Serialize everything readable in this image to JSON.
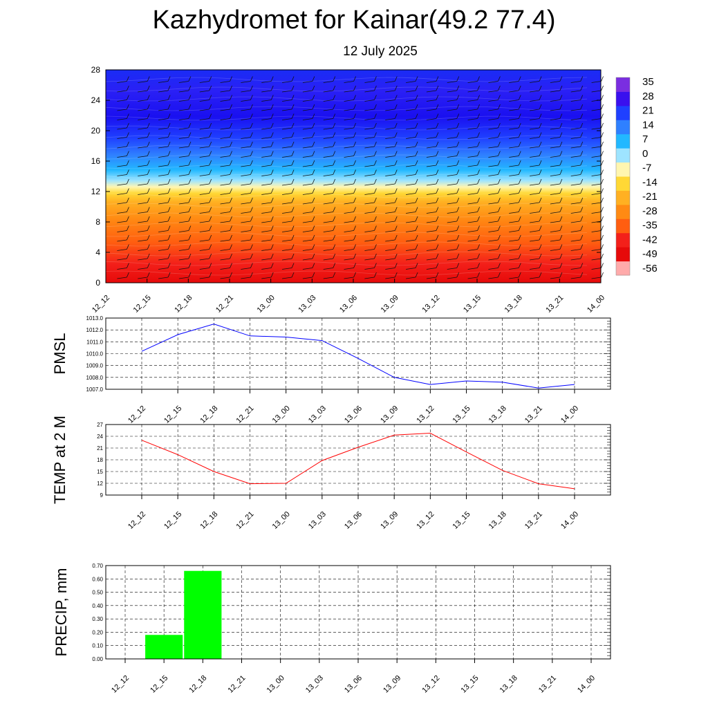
{
  "title": "Kazhydromet for Kainar(49.2 77.4)",
  "subtitle": "12 July 2025",
  "time_labels": [
    "12_12",
    "12_15",
    "12_18",
    "12_21",
    "13_00",
    "13_03",
    "13_06",
    "13_09",
    "13_12",
    "13_15",
    "13_18",
    "13_21",
    "14_00"
  ],
  "chart_data": [
    {
      "type": "heatmap",
      "title": "",
      "y_ticks": [
        0,
        4,
        8,
        12,
        16,
        20,
        24,
        28
      ],
      "ylim": [
        0,
        28
      ],
      "x": [
        "12_12",
        "12_15",
        "12_18",
        "12_21",
        "13_00",
        "13_03",
        "13_06",
        "13_09",
        "13_12",
        "13_15",
        "13_18",
        "13_21",
        "14_00"
      ],
      "colorbar": {
        "labels": [
          "35",
          "28",
          "21",
          "14",
          "7",
          "0",
          "-7",
          "-14",
          "-21",
          "-28",
          "-35",
          "-42",
          "-49",
          "-56"
        ],
        "range": [
          -63,
          42
        ],
        "colors": [
          "#7a2ee0",
          "#3a10ee",
          "#1f40ff",
          "#2f80ff",
          "#22b8ff",
          "#9ee4ff",
          "#fff6b0",
          "#ffd835",
          "#ffb022",
          "#ff8a13",
          "#ff5e10",
          "#f3201a",
          "#e60a0a",
          "#ffaaaa"
        ]
      }
    },
    {
      "type": "line",
      "ylabel": "PMSL",
      "x": [
        "12_12",
        "12_15",
        "12_18",
        "12_21",
        "13_00",
        "13_03",
        "13_06",
        "13_09",
        "13_12",
        "13_15",
        "13_18",
        "13_21",
        "14_00"
      ],
      "values": [
        1010.2,
        1011.6,
        1012.5,
        1011.5,
        1011.4,
        1011.1,
        1009.6,
        1008.0,
        1007.4,
        1007.7,
        1007.6,
        1007.1,
        1007.4
      ],
      "ylim": [
        1007.0,
        1013.0
      ],
      "y_ticks": [
        "1007.0",
        "1008.0",
        "1009.0",
        "1010.0",
        "1011.0",
        "1012.0",
        "1013.0"
      ],
      "color": "#0000ff",
      "grid": true
    },
    {
      "type": "line",
      "ylabel": "TEMP at 2 M",
      "x": [
        "12_12",
        "12_15",
        "12_18",
        "12_21",
        "13_00",
        "13_03",
        "13_06",
        "13_09",
        "13_12",
        "13_15",
        "13_18",
        "13_21",
        "14_00"
      ],
      "values": [
        23.0,
        19.3,
        15.0,
        11.9,
        12.0,
        17.8,
        21.2,
        24.3,
        24.8,
        20.0,
        15.3,
        11.9,
        10.6
      ],
      "ylim": [
        9,
        27
      ],
      "y_ticks": [
        "9",
        "12",
        "15",
        "18",
        "21",
        "24",
        "27"
      ],
      "color": "#ff0000",
      "grid": true
    },
    {
      "type": "bar",
      "ylabel": "PRECIP, mm",
      "categories": [
        "12_12",
        "12_15",
        "12_18",
        "12_21",
        "13_00",
        "13_03",
        "13_06",
        "13_09",
        "13_12",
        "13_15",
        "13_18",
        "13_21",
        "14_00"
      ],
      "values": [
        0,
        0.18,
        0.66,
        0,
        0,
        0,
        0,
        0,
        0,
        0,
        0,
        0,
        0
      ],
      "ylim": [
        0,
        0.7
      ],
      "y_ticks": [
        "0.00",
        "0.10",
        "0.20",
        "0.30",
        "0.40",
        "0.50",
        "0.60",
        "0.70"
      ],
      "color": "#00ff00",
      "grid": true
    }
  ]
}
